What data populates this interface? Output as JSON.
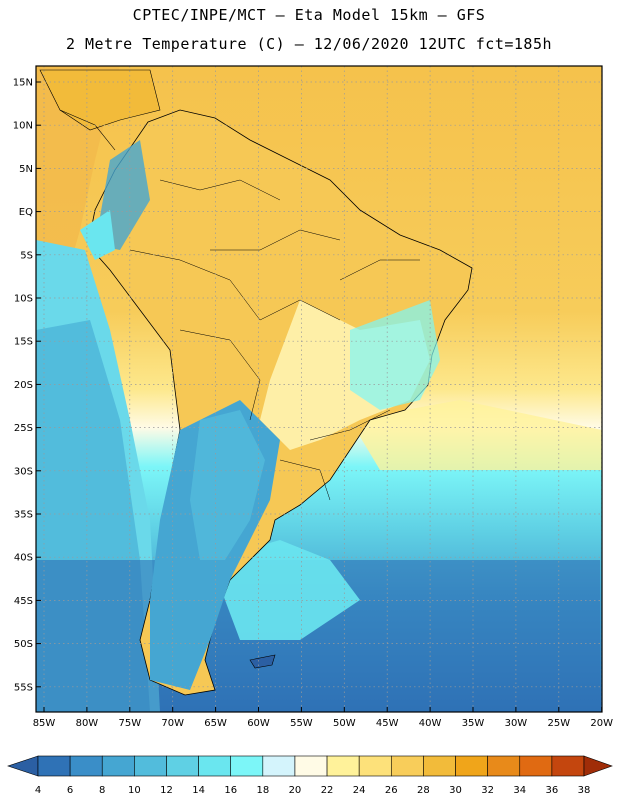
{
  "header": {
    "line1": "CPTEC/INPE/MCT –  Eta Model 15km – GFS",
    "line2": "2 Metre Temperature (C) – 12/06/2020 12UTC fct=185h"
  },
  "map": {
    "lat_labels": [
      "15N",
      "10N",
      "5N",
      "EQ",
      "5S",
      "10S",
      "15S",
      "20S",
      "25S",
      "30S",
      "35S",
      "40S",
      "45S",
      "50S",
      "55S"
    ],
    "lon_labels": [
      "85W",
      "80W",
      "75W",
      "70W",
      "65W",
      "60W",
      "55W",
      "50W",
      "45W",
      "40W",
      "35W",
      "30W",
      "25W",
      "20W"
    ],
    "grid": true
  },
  "colorbar": {
    "ticks": [
      "4",
      "6",
      "8",
      "10",
      "12",
      "14",
      "16",
      "18",
      "20",
      "22",
      "24",
      "26",
      "28",
      "30",
      "32",
      "34",
      "36",
      "38"
    ],
    "colors": [
      "#2b5fa3",
      "#2f72b6",
      "#3a8ec8",
      "#45a6d2",
      "#52bcdc",
      "#5fd0e4",
      "#6ae6ef",
      "#7cf6f8",
      "#d4f4fc",
      "#fffbe6",
      "#fff29a",
      "#fde17a",
      "#f8cd5a",
      "#f2bb3a",
      "#f0a51a",
      "#e88a1a",
      "#e06a12",
      "#c4460e",
      "#a02d08"
    ]
  }
}
